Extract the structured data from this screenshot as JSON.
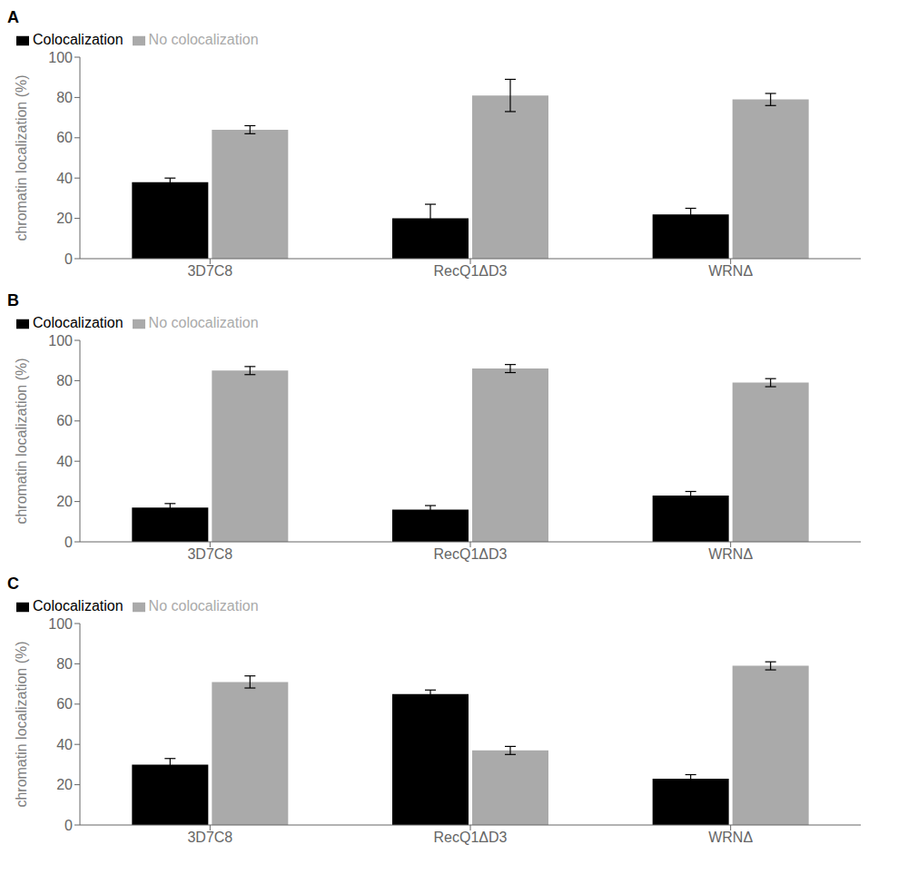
{
  "chart_data": [
    {
      "type": "bar",
      "title": "A",
      "categories": [
        "3D7C8",
        "RecQ1ΔD3",
        "WRNΔ"
      ],
      "series": [
        {
          "name": "Colocalization",
          "color": "#000000",
          "values": [
            38,
            20,
            22
          ],
          "errors": [
            2,
            7,
            3
          ]
        },
        {
          "name": "No colocalization",
          "color": "#aaaaaa",
          "values": [
            64,
            81,
            79
          ],
          "errors": [
            2,
            8,
            3
          ]
        }
      ],
      "ylabel": "chromatin localization (%)",
      "ylim": [
        0,
        100
      ],
      "yticks": [
        0,
        20,
        40,
        60,
        80,
        100
      ],
      "grid": false,
      "legend": "upper left"
    },
    {
      "type": "bar",
      "title": "B",
      "categories": [
        "3D7C8",
        "RecQ1ΔD3",
        "WRNΔ"
      ],
      "series": [
        {
          "name": "Colocalization",
          "color": "#000000",
          "values": [
            17,
            16,
            23
          ],
          "errors": [
            2,
            2,
            2
          ]
        },
        {
          "name": "No colocalization",
          "color": "#aaaaaa",
          "values": [
            85,
            86,
            79
          ],
          "errors": [
            2,
            2,
            2
          ]
        }
      ],
      "ylabel": "chromatin localization (%)",
      "ylim": [
        0,
        100
      ],
      "yticks": [
        0,
        20,
        40,
        60,
        80,
        100
      ],
      "grid": false,
      "legend": "upper left"
    },
    {
      "type": "bar",
      "title": "C",
      "categories": [
        "3D7C8",
        "RecQ1ΔD3",
        "WRNΔ"
      ],
      "series": [
        {
          "name": "Colocalization",
          "color": "#000000",
          "values": [
            30,
            65,
            23
          ],
          "errors": [
            3,
            2,
            2
          ]
        },
        {
          "name": "No colocalization",
          "color": "#aaaaaa",
          "values": [
            71,
            37,
            79
          ],
          "errors": [
            3,
            2,
            2
          ]
        }
      ],
      "ylabel": "chromatin localization (%)",
      "ylim": [
        0,
        100
      ],
      "yticks": [
        0,
        20,
        40,
        60,
        80,
        100
      ],
      "grid": false,
      "legend": "upper left"
    }
  ]
}
